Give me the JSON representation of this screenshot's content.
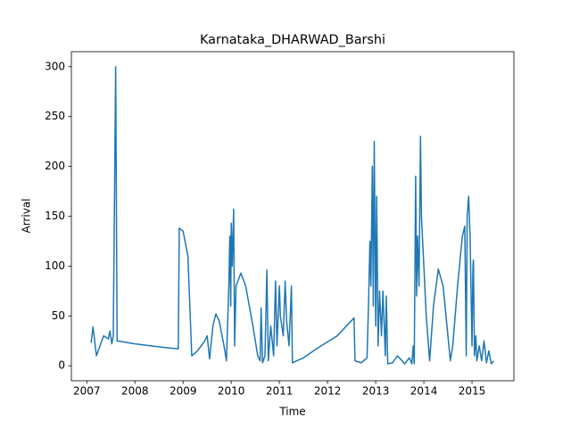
{
  "chart_data": {
    "type": "line",
    "title": "Karnataka_DHARWAD_Barshi",
    "x_label": "Time",
    "y_label": "Arrival",
    "x": [
      2007.09,
      2007.13,
      2007.2,
      2007.35,
      2007.45,
      2007.48,
      2007.52,
      2007.55,
      2007.6,
      2007.63,
      2008.0,
      2008.5,
      2008.9,
      2008.92,
      2009.0,
      2009.1,
      2009.18,
      2009.3,
      2009.45,
      2009.5,
      2009.55,
      2009.62,
      2009.68,
      2009.75,
      2009.85,
      2009.9,
      2009.95,
      2009.97,
      2009.99,
      2010.0,
      2010.02,
      2010.05,
      2010.07,
      2010.1,
      2010.2,
      2010.3,
      2010.45,
      2010.55,
      2010.6,
      2010.62,
      2010.65,
      2010.7,
      2010.74,
      2010.77,
      2010.82,
      2010.88,
      2010.92,
      2010.95,
      2011.0,
      2011.02,
      2011.05,
      2011.08,
      2011.12,
      2011.15,
      2011.2,
      2011.25,
      2011.27,
      2011.5,
      2011.8,
      2012.2,
      2012.55,
      2012.57,
      2012.7,
      2012.82,
      2012.85,
      2012.88,
      2012.9,
      2012.93,
      2012.95,
      2012.97,
      2013.0,
      2013.02,
      2013.05,
      2013.08,
      2013.12,
      2013.15,
      2013.2,
      2013.22,
      2013.25,
      2013.35,
      2013.45,
      2013.55,
      2013.6,
      2013.7,
      2013.75,
      2013.78,
      2013.8,
      2013.83,
      2013.85,
      2013.87,
      2013.9,
      2013.93,
      2013.95,
      2014.0,
      2014.05,
      2014.12,
      2014.2,
      2014.3,
      2014.4,
      2014.5,
      2014.55,
      2014.6,
      2014.7,
      2014.8,
      2014.85,
      2014.88,
      2014.9,
      2014.93,
      2014.96,
      2015.0,
      2015.02,
      2015.03,
      2015.05,
      2015.08,
      2015.1,
      2015.15,
      2015.2,
      2015.25,
      2015.3,
      2015.35,
      2015.4,
      2015.45
    ],
    "series": [
      {
        "color": "#1f77b4",
        "values": [
          23,
          39,
          10,
          30,
          27,
          35,
          22,
          30,
          300,
          25,
          22,
          19,
          17,
          138,
          135,
          110,
          10,
          15,
          25,
          30,
          7,
          40,
          52,
          45,
          20,
          5,
          80,
          130,
          60,
          143,
          100,
          157,
          20,
          80,
          93,
          80,
          40,
          10,
          5,
          58,
          3,
          10,
          96,
          5,
          40,
          10,
          85,
          20,
          80,
          50,
          40,
          30,
          85,
          45,
          20,
          80,
          3,
          8,
          18,
          30,
          48,
          5,
          3,
          8,
          60,
          125,
          80,
          200,
          60,
          225,
          40,
          170,
          20,
          75,
          30,
          75,
          10,
          70,
          2,
          3,
          10,
          5,
          2,
          8,
          2,
          20,
          2,
          190,
          70,
          130,
          80,
          230,
          150,
          100,
          50,
          5,
          60,
          97,
          80,
          30,
          5,
          20,
          80,
          130,
          140,
          10,
          150,
          170,
          130,
          20,
          100,
          106,
          10,
          30,
          5,
          20,
          5,
          25,
          3,
          15,
          2,
          5
        ]
      }
    ],
    "xlim": [
      2006.68,
      2015.87
    ],
    "xticks": [
      2007,
      2008,
      2009,
      2010,
      2011,
      2012,
      2013,
      2014,
      2015
    ],
    "ylim": [
      -15,
      315
    ],
    "yticks": [
      0,
      50,
      100,
      150,
      200,
      250,
      300
    ]
  }
}
